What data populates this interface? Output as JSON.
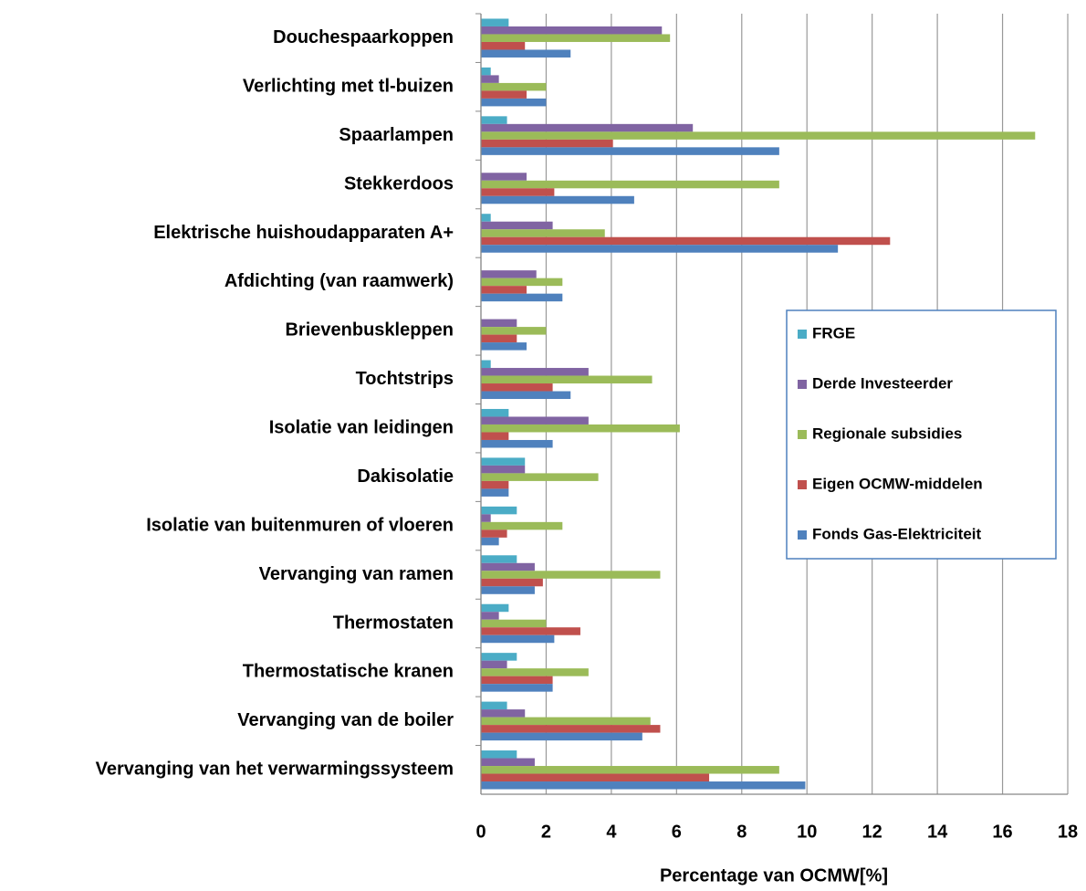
{
  "chart_data": {
    "type": "barh",
    "xlabel": "Percentage van OCMW[%]",
    "categories": [
      "Douchespaarkoppen",
      "Verlichting met tl-buizen",
      "Spaarlampen",
      "Stekkerdoos",
      "Elektrische huishoudapparaten A+",
      "Afdichting (van raamwerk)",
      "Brievenbuskleppen",
      "Tochtstrips",
      "Isolatie van leidingen",
      "Dakisolatie",
      "Isolatie van buitenmuren of vloeren",
      "Vervanging van ramen",
      "Thermostaten",
      "Thermostatische kranen",
      "Vervanging van de boiler",
      "Vervanging van het verwarmingssysteem"
    ],
    "series": [
      {
        "name": "FRGE",
        "color": "#4bacc6",
        "values": [
          0.85,
          0.3,
          0.8,
          0,
          0.3,
          0,
          0,
          0.3,
          0.85,
          1.35,
          1.1,
          1.1,
          0.85,
          1.1,
          0.8,
          1.1
        ]
      },
      {
        "name": "Derde Investeerder",
        "color": "#8064a2",
        "values": [
          5.55,
          0.55,
          6.5,
          1.4,
          2.2,
          1.7,
          1.1,
          3.3,
          3.3,
          1.35,
          0.3,
          1.65,
          0.55,
          0.8,
          1.35,
          1.65
        ]
      },
      {
        "name": "Regionale subsidies",
        "color": "#9bbb59",
        "values": [
          5.8,
          2.0,
          17.0,
          9.15,
          3.8,
          2.5,
          2.0,
          5.25,
          6.1,
          3.6,
          2.5,
          5.5,
          2.0,
          3.3,
          5.2,
          9.15
        ]
      },
      {
        "name": "Eigen OCMW-middelen",
        "color": "#c0504d",
        "values": [
          1.35,
          1.4,
          4.05,
          2.25,
          12.55,
          1.4,
          1.1,
          2.2,
          0.85,
          0.85,
          0.8,
          1.9,
          3.05,
          2.2,
          5.5,
          7.0
        ]
      },
      {
        "name": "Fonds Gas-Elektriciteit",
        "color": "#4f81bd",
        "values": [
          2.75,
          2.0,
          9.15,
          4.7,
          10.95,
          2.5,
          1.4,
          2.75,
          2.2,
          0.85,
          0.55,
          1.65,
          2.25,
          2.2,
          4.95,
          9.95
        ]
      }
    ],
    "xlim": [
      0,
      18
    ],
    "xticks": [
      0,
      2,
      4,
      6,
      8,
      10,
      12,
      14,
      16,
      18
    ],
    "grid": true,
    "legend": "right"
  }
}
